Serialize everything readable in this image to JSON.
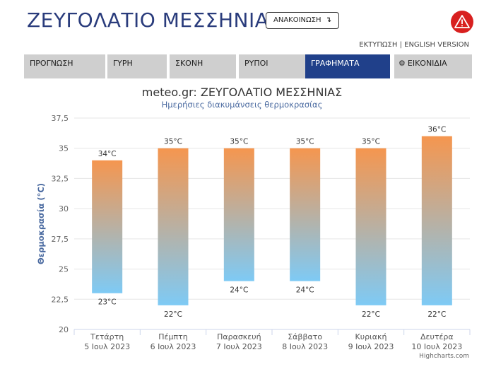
{
  "header": {
    "title": "ΖΕΥΓΟΛΑΤΙΟ ΜΕΣΣΗΝΙΑΣ",
    "announce_label": "ΑΝΑΚΟΙΝΩΣΗ",
    "announce_icon": "arrow-down-right-icon",
    "alert_icon": "warning-triangle-icon",
    "alert_color": "#d8201f",
    "print_link": "ΕΚΤΥΠΩΣΗ",
    "separator": "|",
    "english_link": "ENGLISH VERSION"
  },
  "tabs": [
    {
      "label": "ΠΡΟΓΝΩΣΗ",
      "active": false
    },
    {
      "label": "ΓΥΡΗ",
      "active": false
    },
    {
      "label": "ΣΚΟΝΗ",
      "active": false
    },
    {
      "label": "ΡΥΠΟΙ",
      "active": false
    },
    {
      "label": "ΓΡΑΦΗΜΑΤΑ",
      "active": true
    },
    {
      "label": "ΕΙΚΟΝΙΔΙΑ",
      "active": false,
      "icon": "gear-icon"
    }
  ],
  "colors": {
    "active_tab": "#20408a",
    "tab": "#cfcfcf",
    "bar_top": "#f5964f",
    "bar_bottom": "#7ecaf5"
  },
  "chart_data": {
    "type": "bar",
    "title": "meteo.gr: ΖΕΥΓΟΛΑΤΙΟ ΜΕΣΣΗΝΙΑΣ",
    "subtitle": "Ημερήσιες διακυμάνσεις θερμοκρασίας",
    "ylabel": "Θερμοκρασία (°C)",
    "ylim": [
      20,
      37.5
    ],
    "yticks": [
      "20",
      "22,5",
      "25",
      "27,5",
      "30",
      "32,5",
      "35",
      "37,5"
    ],
    "categories": [
      {
        "day": "Τετάρτη",
        "date": "5 Ιουλ 2023"
      },
      {
        "day": "Πέμπτη",
        "date": "6 Ιουλ 2023"
      },
      {
        "day": "Παρασκευή",
        "date": "7 Ιουλ 2023"
      },
      {
        "day": "Σάββατο",
        "date": "8 Ιουλ 2023"
      },
      {
        "day": "Κυριακή",
        "date": "9 Ιουλ 2023"
      },
      {
        "day": "Δευτέρα",
        "date": "10 Ιουλ 2023"
      }
    ],
    "min": [
      23,
      22,
      24,
      24,
      22,
      22
    ],
    "max": [
      34,
      35,
      35,
      35,
      35,
      36
    ],
    "min_labels": [
      "23°C",
      "22°C",
      "24°C",
      "24°C",
      "22°C",
      "22°C"
    ],
    "max_labels": [
      "34°C",
      "35°C",
      "35°C",
      "35°C",
      "35°C",
      "36°C"
    ],
    "credit": "Highcharts.com"
  }
}
